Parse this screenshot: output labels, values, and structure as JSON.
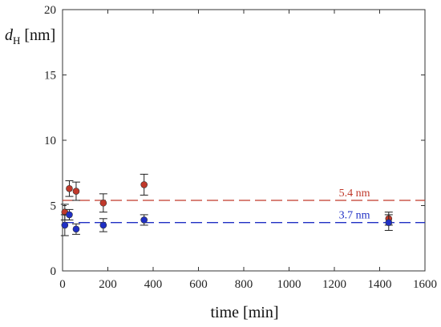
{
  "chart_data": {
    "type": "scatter",
    "title": "",
    "xlabel": "time [min]",
    "ylabel_main": "d",
    "ylabel_sub": "H",
    "ylabel_unit": " [nm]",
    "xlim": [
      0,
      1600
    ],
    "ylim": [
      0,
      20
    ],
    "xticks": [
      0,
      200,
      400,
      600,
      800,
      1000,
      1200,
      1400,
      1600
    ],
    "yticks": [
      0,
      5,
      10,
      15,
      20
    ],
    "grid": false,
    "series": [
      {
        "color": "#c0392b",
        "points": [
          {
            "x": 10,
            "y": 4.5,
            "err": 0.6
          },
          {
            "x": 30,
            "y": 6.3,
            "err": 0.6
          },
          {
            "x": 60,
            "y": 6.1,
            "err": 0.7
          },
          {
            "x": 180,
            "y": 5.2,
            "err": 0.7
          },
          {
            "x": 360,
            "y": 6.6,
            "err": 0.8
          },
          {
            "x": 1440,
            "y": 4.0,
            "err": 0.5
          }
        ]
      },
      {
        "color": "#1f2fc4",
        "points": [
          {
            "x": 10,
            "y": 3.5,
            "err": 0.8
          },
          {
            "x": 30,
            "y": 4.3,
            "err": 0.4
          },
          {
            "x": 60,
            "y": 3.2,
            "err": 0.4
          },
          {
            "x": 180,
            "y": 3.5,
            "err": 0.5
          },
          {
            "x": 360,
            "y": 3.9,
            "err": 0.4
          },
          {
            "x": 1440,
            "y": 3.7,
            "err": 0.6
          }
        ]
      }
    ],
    "reference_lines": [
      {
        "y": 5.4,
        "label": "5.4 nm",
        "color": "#c0392b",
        "label_x": 1220
      },
      {
        "y": 3.7,
        "label": "3.7 nm",
        "color": "#1f2fc4",
        "label_x": 1220
      }
    ]
  }
}
